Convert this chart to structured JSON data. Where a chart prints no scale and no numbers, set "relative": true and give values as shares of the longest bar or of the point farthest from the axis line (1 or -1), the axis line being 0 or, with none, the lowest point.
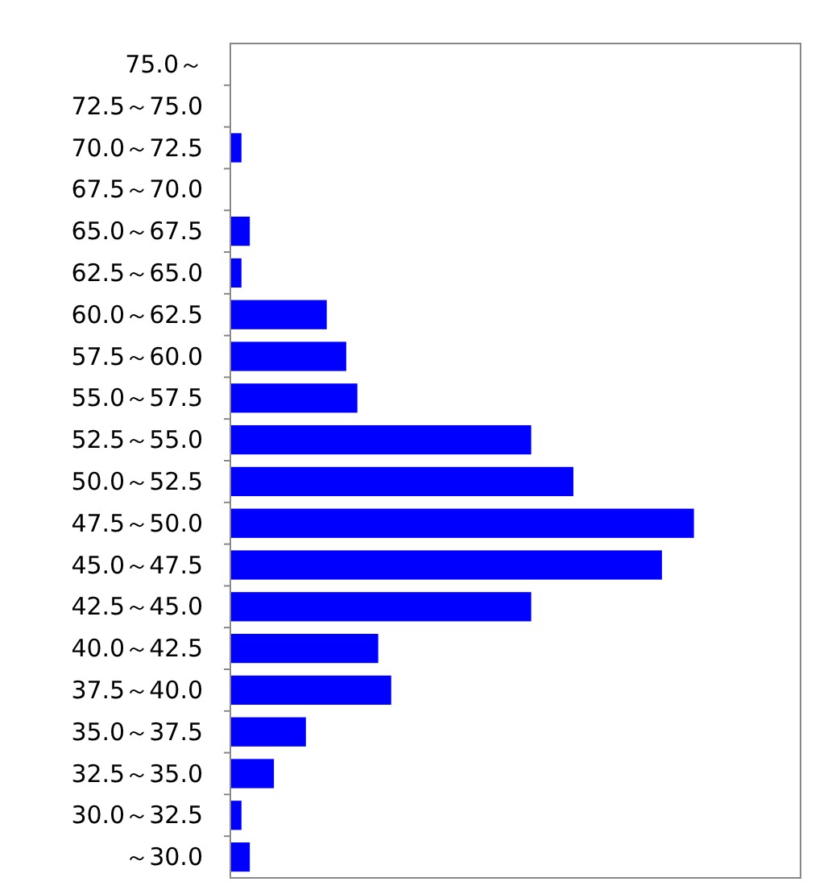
{
  "chart_data": {
    "type": "bar",
    "orientation": "horizontal",
    "relative": true,
    "color": "#0000ff",
    "categories": [
      "75.0～",
      "72.5～75.0",
      "70.0～72.5",
      "67.5～70.0",
      "65.0～67.5",
      "62.5～65.0",
      "60.0～62.5",
      "57.5～60.0",
      "55.0～57.5",
      "52.5～55.0",
      "50.0～52.5",
      "47.5～50.0",
      "45.0～47.5",
      "42.5～45.0",
      "40.0～42.5",
      "37.5～40.0",
      "35.0～37.5",
      "32.5～35.0",
      "30.0～32.5",
      "～30.0"
    ],
    "values": [
      0,
      0,
      0.024,
      0,
      0.042,
      0.024,
      0.208,
      0.25,
      0.274,
      0.649,
      0.74,
      1,
      0.931,
      0.649,
      0.319,
      0.347,
      0.163,
      0.094,
      0.024,
      0.042
    ],
    "grid": false
  }
}
